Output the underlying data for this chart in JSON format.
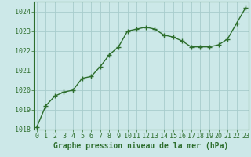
{
  "x": [
    0,
    1,
    2,
    3,
    4,
    5,
    6,
    7,
    8,
    9,
    10,
    11,
    12,
    13,
    14,
    15,
    16,
    17,
    18,
    19,
    20,
    21,
    22,
    23
  ],
  "y": [
    1018.1,
    1019.2,
    1019.7,
    1019.9,
    1020.0,
    1020.6,
    1020.7,
    1021.2,
    1021.8,
    1022.2,
    1023.0,
    1023.1,
    1023.2,
    1023.1,
    1022.8,
    1022.7,
    1022.5,
    1022.2,
    1022.2,
    1022.2,
    1022.3,
    1022.6,
    1023.4,
    1024.2
  ],
  "ylim": [
    1018,
    1024.5
  ],
  "xlim": [
    -0.3,
    23.3
  ],
  "yticks": [
    1018,
    1019,
    1020,
    1021,
    1022,
    1023,
    1024
  ],
  "xticks": [
    0,
    1,
    2,
    3,
    4,
    5,
    6,
    7,
    8,
    9,
    10,
    11,
    12,
    13,
    14,
    15,
    16,
    17,
    18,
    19,
    20,
    21,
    22,
    23
  ],
  "xlabel": "Graphe pression niveau de la mer (hPa)",
  "line_color": "#2d6e2d",
  "marker": "+",
  "marker_size": 4,
  "line_width": 1.0,
  "bg_color": "#cce8e8",
  "grid_color": "#a8cccc",
  "tick_color": "#2d6e2d",
  "label_color": "#2d6e2d",
  "xlabel_fontsize": 7,
  "tick_fontsize": 6,
  "markeredgewidth": 1.0
}
